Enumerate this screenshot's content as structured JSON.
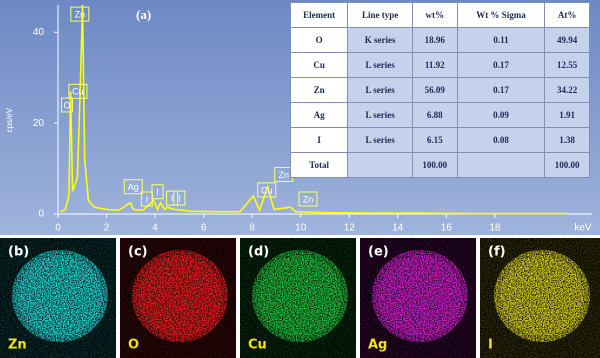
{
  "chart_data": {
    "type": "line",
    "panel_label": "(a)",
    "ylabel": "cps/eV",
    "xlabel": "keV",
    "xlim": [
      0,
      22
    ],
    "xticks": [
      0,
      2,
      4,
      6,
      8,
      10,
      12,
      14,
      16,
      18
    ],
    "ylim": [
      0,
      46
    ],
    "yticks": [
      0,
      20,
      40
    ],
    "x": [
      0.1,
      0.3,
      0.45,
      0.52,
      0.6,
      0.8,
      0.93,
      1.01,
      1.1,
      1.25,
      1.5,
      2,
      2.5,
      2.98,
      3.1,
      3.5,
      3.94,
      4.1,
      4.22,
      4.4,
      4.5,
      4.8,
      5.5,
      6.5,
      7.5,
      8.05,
      8.3,
      8.64,
      8.9,
      9.57,
      9.8,
      11,
      13,
      15,
      17,
      19,
      21
    ],
    "series": [
      {
        "color": "#ffff00",
        "values": [
          0.5,
          1,
          4,
          27,
          5,
          8,
          30,
          46,
          12,
          3,
          1.5,
          1,
          0.8,
          2.5,
          1,
          0.8,
          3,
          1,
          2.5,
          1,
          1.5,
          1,
          0.6,
          0.5,
          0.5,
          4,
          0.8,
          6,
          1,
          1.5,
          0.5,
          0.3,
          0.2,
          0.2,
          0.1,
          0.1,
          0.1
        ]
      }
    ],
    "annotations": [
      {
        "text": "Zn",
        "x": 0.9,
        "y": 44
      },
      {
        "text": "O",
        "x": 0.37,
        "y": 24
      },
      {
        "text": "Cu",
        "x": 0.82,
        "y": 27
      },
      {
        "text": "Ag",
        "x": 3.1,
        "y": 6
      },
      {
        "text": "I",
        "x": 3.66,
        "y": 3.3
      },
      {
        "text": "I",
        "x": 4.1,
        "y": 4.9
      },
      {
        "text": "I",
        "x": 4.7,
        "y": 3.5
      },
      {
        "text": "I",
        "x": 5.0,
        "y": 3.5
      },
      {
        "text": "Cu",
        "x": 8.6,
        "y": 5.3
      },
      {
        "text": "Zn",
        "x": 9.3,
        "y": 8.7
      },
      {
        "text": "Zn",
        "x": 10.3,
        "y": 3.3
      }
    ]
  },
  "table": {
    "columns": [
      "Element",
      "Line type",
      "wt%",
      "Wt % Sigma",
      "At%"
    ],
    "rows": [
      [
        "O",
        "K series",
        "18.96",
        "0.11",
        "49.94"
      ],
      [
        "Cu",
        "L series",
        "11.92",
        "0.17",
        "12.55"
      ],
      [
        "Zn",
        "L series",
        "56.09",
        "0.17",
        "34.22"
      ],
      [
        "Ag",
        "L series",
        "6.88",
        "0.09",
        "1.91"
      ],
      [
        "I",
        "L series",
        "6.15",
        "0.08",
        "1.38"
      ],
      [
        "Total",
        null,
        "100.00",
        null,
        "100.00"
      ]
    ]
  },
  "maps": [
    {
      "label": "(b)",
      "element": "Zn",
      "color": "#22e6e6"
    },
    {
      "label": "(c)",
      "element": "O",
      "color": "#ff2020"
    },
    {
      "label": "(d)",
      "element": "Cu",
      "color": "#20d040"
    },
    {
      "label": "(e)",
      "element": "Ag",
      "color": "#e020e0"
    },
    {
      "label": "(f)",
      "element": "I",
      "color": "#e8e020"
    }
  ]
}
